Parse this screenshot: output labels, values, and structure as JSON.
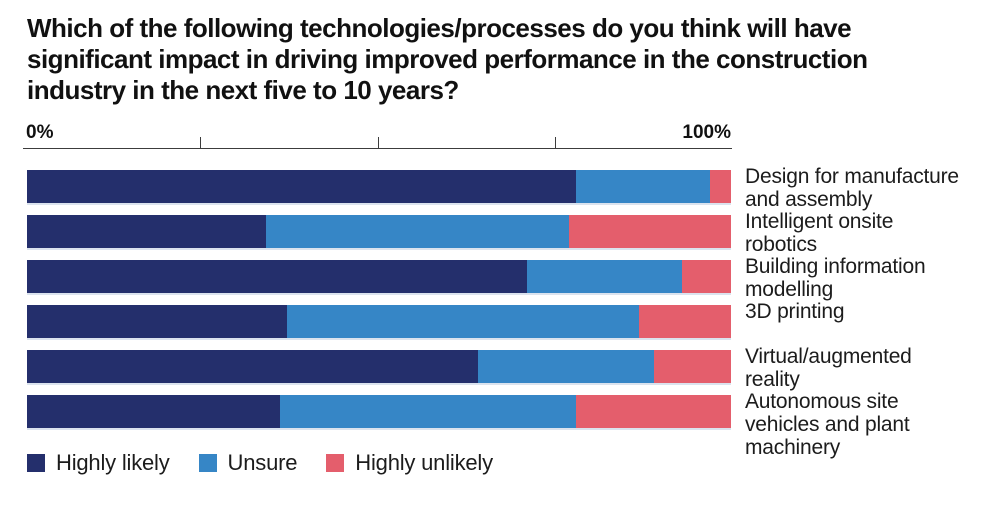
{
  "title": "Which of the following technologies/processes do you think will have\nsignificant impact in driving improved performance in the construction\nindustry in the next five to 10 years?",
  "axis": {
    "min_label": "0%",
    "max_label": "100%",
    "ticks_percent": [
      25,
      50,
      75
    ]
  },
  "chart_data": {
    "type": "bar",
    "orientation": "horizontal",
    "stacked": true,
    "title": "Which of the following technologies/processes do you think will have significant impact in driving improved performance in the construction industry in the next five to 10 years?",
    "categories": [
      "Design for manufacture and assembly",
      "Intelligent onsite robotics",
      "Building information modelling",
      "3D printing",
      "Virtual/augmented reality",
      "Autonomous site vehicles and plant machinery"
    ],
    "category_label_lines": [
      [
        "Design for manufacture",
        "and assembly"
      ],
      [
        "Intelligent onsite",
        "robotics"
      ],
      [
        "Building information",
        "modelling"
      ],
      [
        "3D printing"
      ],
      [
        "Virtual/augmented",
        "reality"
      ],
      [
        "Autonomous site",
        "vehicles and plant",
        "machinery"
      ]
    ],
    "series": [
      {
        "name": "Highly likely",
        "color": "#242f6c",
        "values": [
          78,
          34,
          71,
          37,
          64,
          36
        ]
      },
      {
        "name": "Unsure",
        "color": "#3686c6",
        "values": [
          19,
          43,
          22,
          50,
          25,
          42
        ]
      },
      {
        "name": "Highly unlikely",
        "color": "#e45e6c",
        "values": [
          3,
          23,
          7,
          13,
          11,
          22
        ]
      }
    ],
    "xlim": [
      0,
      100
    ],
    "x_unit": "%",
    "legend_position": "bottom-left",
    "grid": false
  }
}
